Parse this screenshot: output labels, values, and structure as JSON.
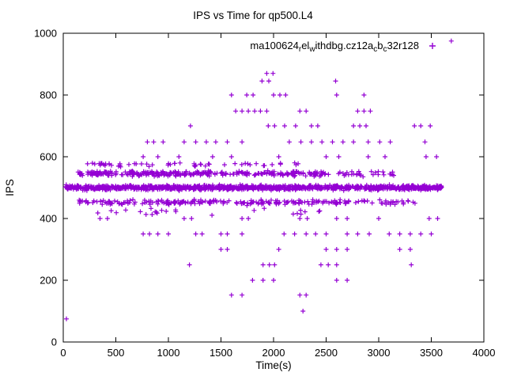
{
  "window": {
    "title": "IPS vs Time for qp500.L4"
  },
  "chart_data": {
    "type": "scatter",
    "title": "IPS vs Time for qp500.L4",
    "xlabel": "Time(s)",
    "ylabel": "IPS",
    "xlim": [
      0,
      4000
    ],
    "ylim": [
      0,
      1000
    ],
    "xticks": [
      0,
      500,
      1000,
      1500,
      2000,
      2500,
      3000,
      3500,
      4000
    ],
    "yticks": [
      0,
      200,
      400,
      600,
      800,
      1000
    ],
    "grid": false,
    "legend_position": "top-right-inside",
    "legend": "ma100624_rel_withdbg.cz12a_cb_c32r128",
    "legend_display": [
      {
        "t": "ma100624",
        "sub": false
      },
      {
        "t": "r",
        "sub": true
      },
      {
        "t": "el",
        "sub": false
      },
      {
        "t": "w",
        "sub": true
      },
      {
        "t": "ithdbg.cz12a",
        "sub": false
      },
      {
        "t": "c",
        "sub": true
      },
      {
        "t": "b",
        "sub": false
      },
      {
        "t": "c",
        "sub": true
      },
      {
        "t": "32r128",
        "sub": false
      }
    ],
    "marker": "plus",
    "color": "#9400D3",
    "series_note": "Dense horizontal bands of samples plus discrete outlier rows; bands give y-center, x-range, point count and y-spread (IPS).",
    "bands": [
      {
        "name": "main-band-500",
        "y": 500,
        "x_range": [
          20,
          3600
        ],
        "n": 1100,
        "sd": 6
      },
      {
        "name": "band-545",
        "y": 546,
        "x_range": [
          140,
          2520
        ],
        "n": 300,
        "sd": 7
      },
      {
        "name": "band-545-tail",
        "y": 546,
        "x_range": [
          2520,
          3150
        ],
        "n": 30,
        "sd": 7
      },
      {
        "name": "band-455",
        "y": 453,
        "x_range": [
          140,
          3350
        ],
        "n": 230,
        "sd": 7
      },
      {
        "name": "band-575",
        "y": 575,
        "x_range": [
          170,
          2260
        ],
        "n": 55,
        "sd": 5
      },
      {
        "name": "band-420",
        "y": 422,
        "x_range": [
          250,
          2450
        ],
        "n": 25,
        "sd": 8
      }
    ],
    "outlier_levels": [
      {
        "y": 975,
        "x": [
          3690
        ]
      },
      {
        "y": 870,
        "x": [
          1935,
          1995
        ]
      },
      {
        "y": 845,
        "x": [
          1890,
          1955,
          2590
        ]
      },
      {
        "y": 800,
        "x": [
          1600,
          1745,
          1805,
          2000,
          2060,
          2115,
          2600,
          2860
        ]
      },
      {
        "y": 748,
        "x": [
          1640,
          1700,
          1760,
          1820,
          1875,
          1935,
          2250,
          2310,
          2800,
          2860,
          2920
        ]
      },
      {
        "y": 700,
        "x": [
          1210,
          1950,
          2010,
          2105,
          2210,
          2360,
          2420,
          2760,
          2820,
          2880,
          3340,
          3400,
          3490
        ]
      },
      {
        "y": 648,
        "x": [
          800,
          860,
          950,
          1150,
          1260,
          1360,
          1450,
          1560,
          1700,
          2150,
          2260,
          2360,
          2460,
          2560,
          2660,
          2760,
          2900,
          3010,
          3110,
          3440
        ]
      },
      {
        "y": 600,
        "x": [
          760,
          900,
          1100,
          1420,
          1600,
          2050,
          2500,
          2620,
          2900,
          3060,
          3450,
          3550
        ]
      },
      {
        "y": 400,
        "x": [
          350,
          420,
          1150,
          1220,
          1700,
          1760,
          2250,
          2320,
          2600,
          2700,
          3000,
          3480,
          3560
        ]
      },
      {
        "y": 350,
        "x": [
          760,
          820,
          900,
          1000,
          1260,
          1320,
          1500,
          1560,
          1700,
          2100,
          2200,
          2310,
          2400,
          2500,
          2700,
          2800,
          2910,
          3100,
          3200,
          3300,
          3400,
          3500
        ]
      },
      {
        "y": 300,
        "x": [
          1500,
          1560,
          2050,
          2500,
          2600,
          2700,
          3200,
          3300
        ]
      },
      {
        "y": 250,
        "x": [
          1200,
          1900,
          1960,
          2010,
          2450,
          2520,
          2600,
          3310
        ]
      },
      {
        "y": 200,
        "x": [
          1800,
          1900,
          2000,
          2600,
          2700
        ]
      },
      {
        "y": 152,
        "x": [
          1600,
          1700,
          2250,
          2310
        ]
      },
      {
        "y": 100,
        "x": [
          2280
        ]
      },
      {
        "y": 75,
        "x": [
          30
        ]
      }
    ]
  },
  "style": {
    "point_color": "#9400D3",
    "axis_color": "#000000",
    "background": "#ffffff"
  }
}
